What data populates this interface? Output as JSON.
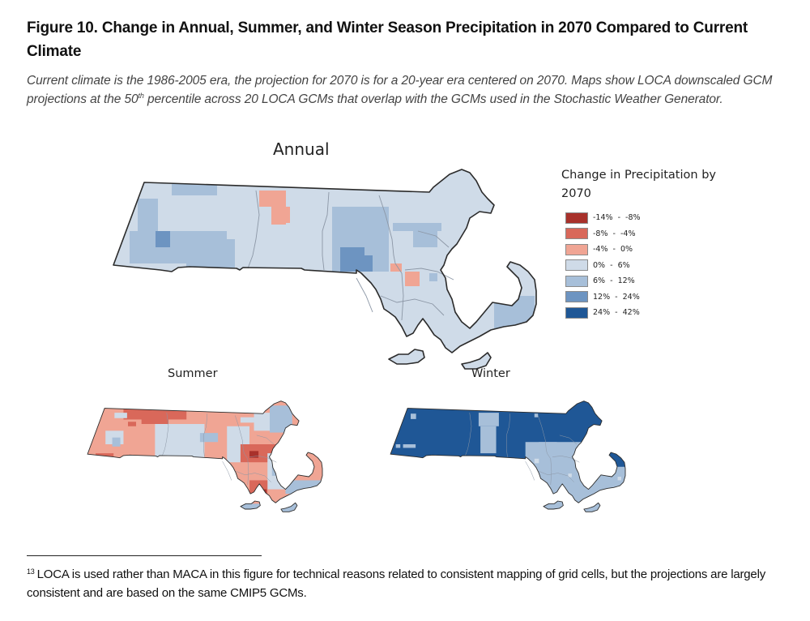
{
  "figure": {
    "title": "Figure 10. Change in Annual, Summer, and Winter Season Precipitation in 2070 Compared to Current Climate",
    "caption_part1": "Current climate is the 1986-2005 era, the projection for 2070 is for a 20-year era centered on 2070. Maps show LOCA downscaled GCM projections at the 50",
    "caption_sup": "th",
    "caption_part2": " percentile across 20 LOCA GCMs that overlap with the GCMs used in the Stochastic Weather Generator."
  },
  "maps": {
    "annual": {
      "label": "Annual",
      "dominant_class": "0% - 6%"
    },
    "summer": {
      "label": "Summer",
      "dominant_class": "-4% - 0%"
    },
    "winter": {
      "label": "Winter",
      "dominant_class": "24% - 42%"
    }
  },
  "legend": {
    "title": "Change in Precipitation by 2070",
    "items": [
      {
        "label": "-14%  -  -8%",
        "color": "#a8312b"
      },
      {
        "label": "-8%  -  -4%",
        "color": "#d9685a"
      },
      {
        "label": "-4%  -  0%",
        "color": "#f0a594"
      },
      {
        "label": "0%  -  6%",
        "color": "#cfdbe8"
      },
      {
        "label": "6%  -  12%",
        "color": "#a7bfd9"
      },
      {
        "label": "12%  -  24%",
        "color": "#6d94c1"
      },
      {
        "label": "24%  -  42%",
        "color": "#1f5796"
      }
    ]
  },
  "colors": {
    "outline": "#2b2b2b",
    "county": "#8c97a6"
  },
  "footnote": {
    "number": "13",
    "text": "LOCA is used rather than MACA in this figure for technical reasons related to consistent mapping of grid cells, but the projections are largely consistent and are based on the same CMIP5 GCMs."
  }
}
